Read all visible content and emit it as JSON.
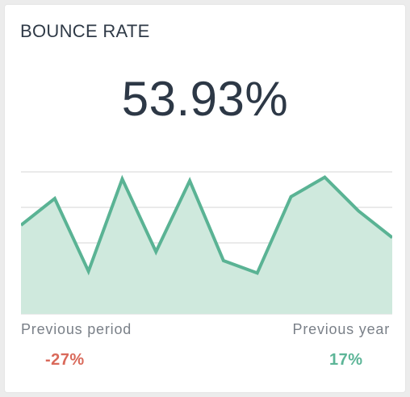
{
  "widget": {
    "title": "BOUNCE RATE",
    "value": "53.93%"
  },
  "comparisons": [
    {
      "label": "Previous period",
      "value": "-27%",
      "color": "#d9695a"
    },
    {
      "label": "Previous year",
      "value": "17%",
      "color": "#5cb597"
    }
  ],
  "chart_data": {
    "type": "area",
    "title": "",
    "x": [
      1,
      2,
      3,
      4,
      5,
      6,
      7,
      8,
      9,
      10,
      11,
      12
    ],
    "series": [
      {
        "values": [
          2.5,
          3.25,
          1.2,
          3.8,
          1.75,
          3.75,
          1.5,
          1.15,
          3.3,
          3.85,
          2.9,
          2.15
        ]
      }
    ],
    "ylim": [
      0,
      4
    ],
    "grid": true,
    "line_color": "#5ab394",
    "fill_color": "#cfe9dd"
  }
}
